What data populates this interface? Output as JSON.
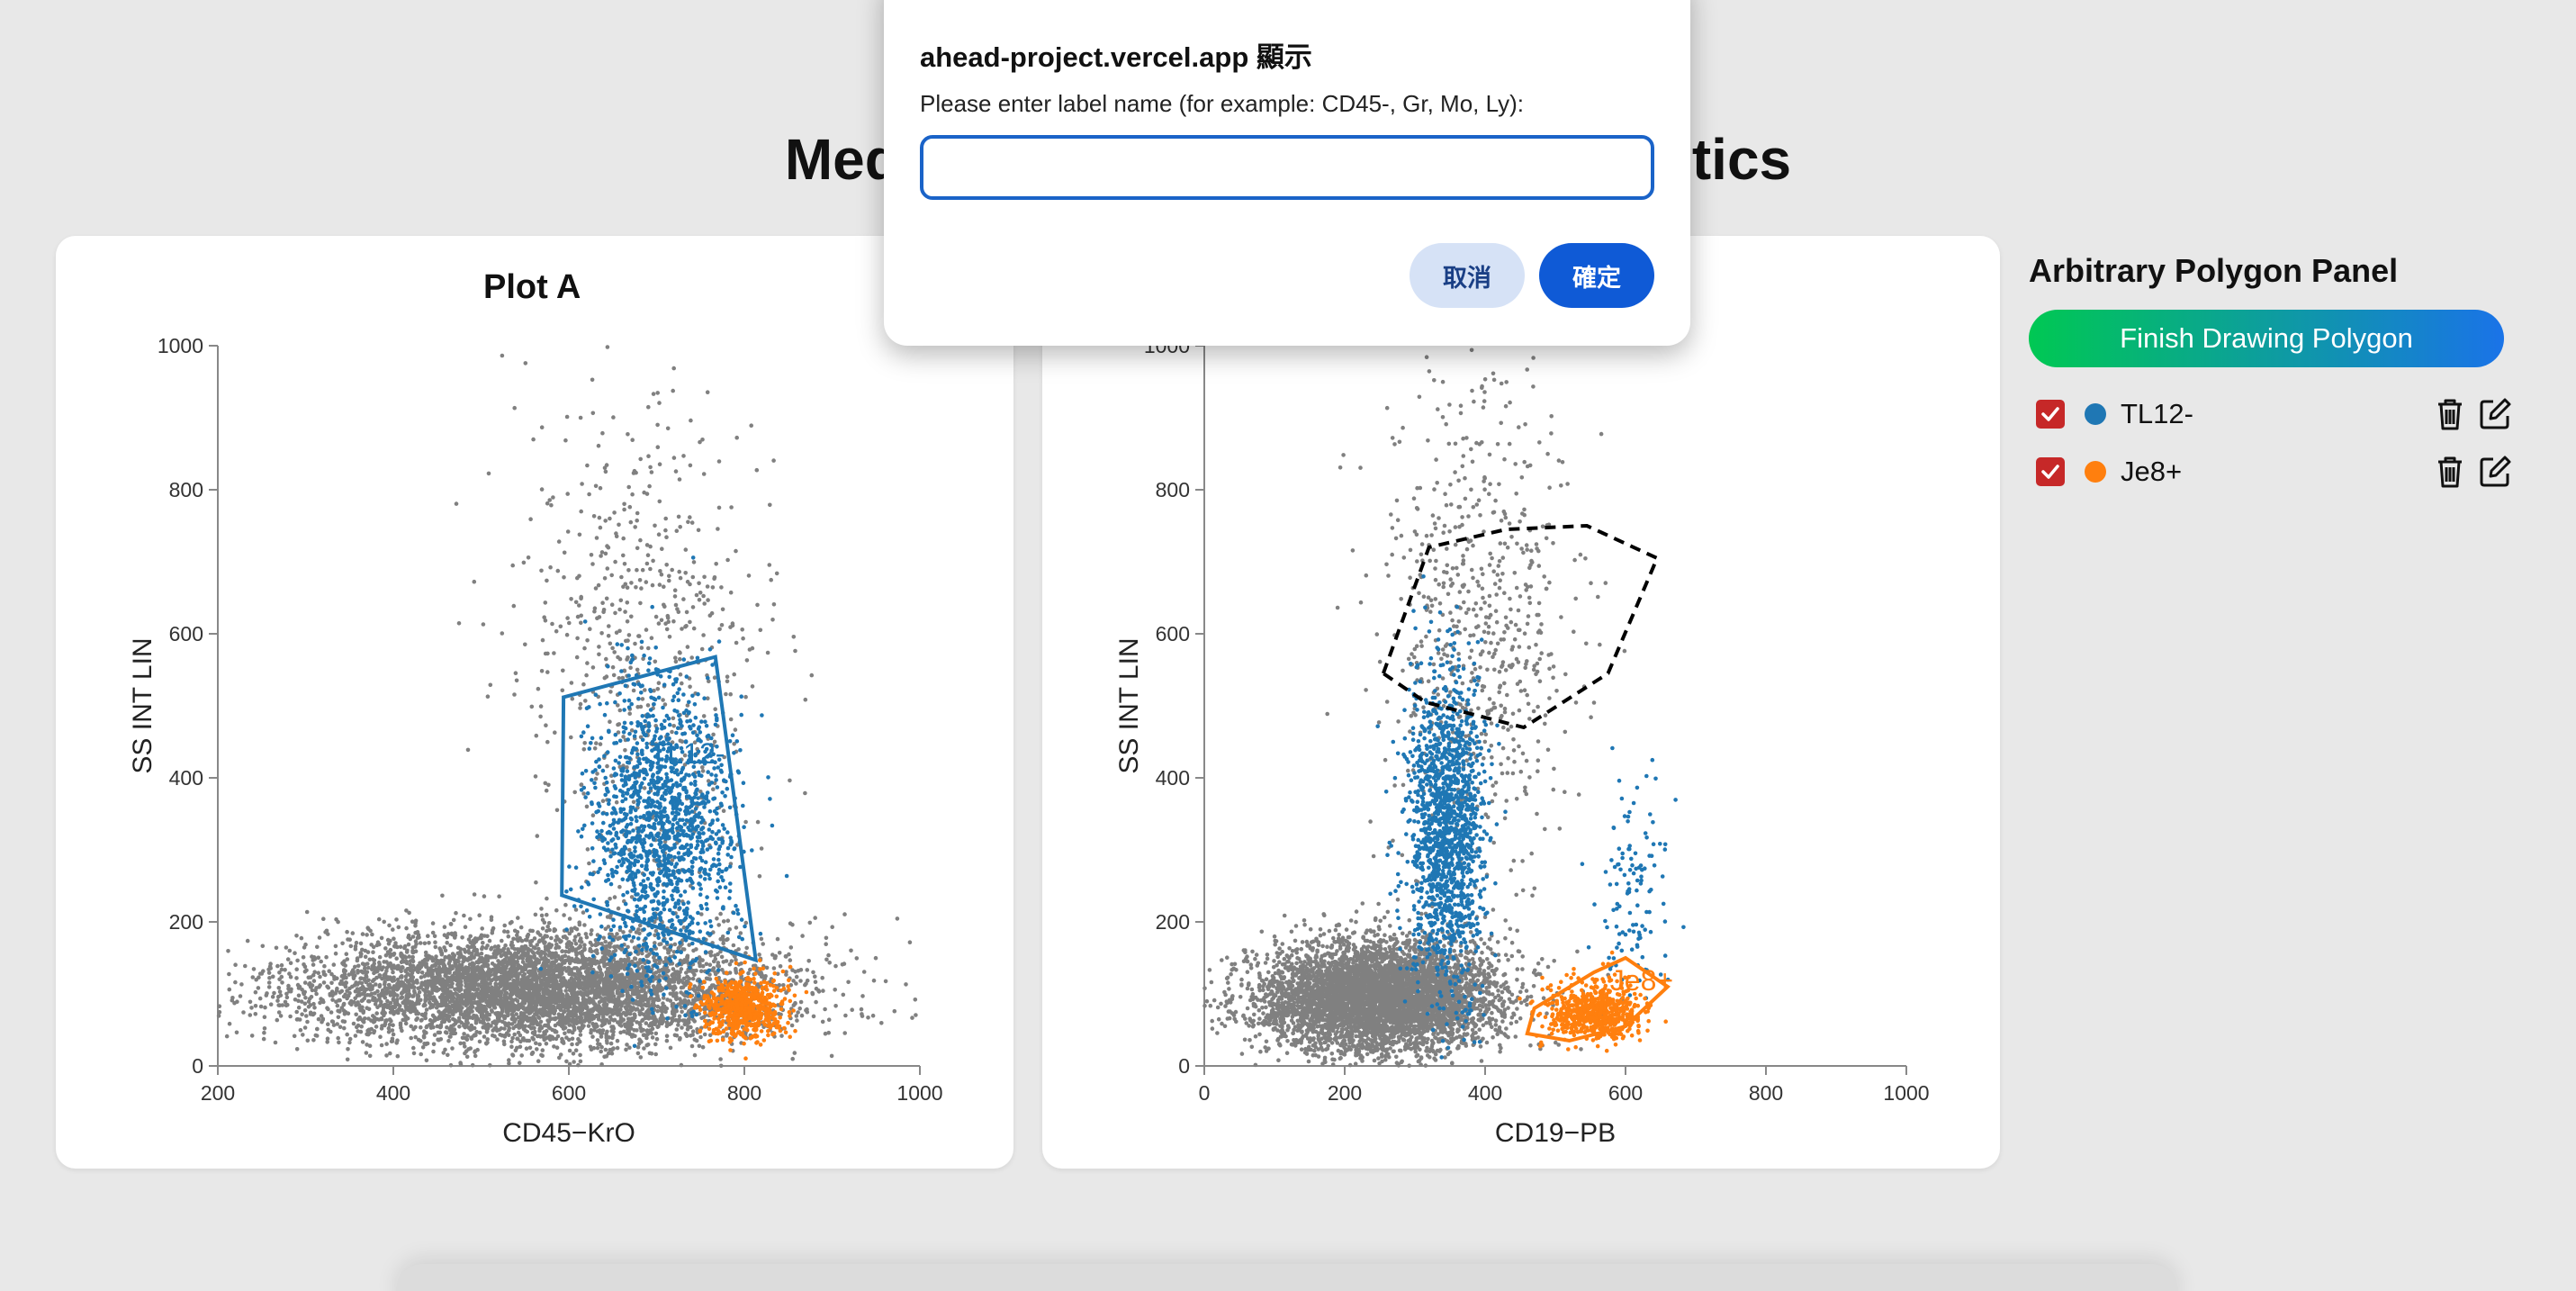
{
  "page": {
    "title_visible_left": "Med",
    "title_visible_right": "tics"
  },
  "plots": [
    {
      "title": "Plot A",
      "xlabel": "CD45−KrO",
      "ylabel": "SS INT LIN",
      "xlim": [
        200,
        1000
      ],
      "ylim": [
        0,
        1000
      ],
      "xticks": [
        "200",
        "400",
        "600",
        "800",
        "1000"
      ],
      "yticks": [
        "0",
        "200",
        "400",
        "600",
        "800",
        "1000"
      ]
    },
    {
      "title": "",
      "xlabel": "CD19−PB",
      "ylabel": "SS INT LIN",
      "xlim": [
        0,
        1000
      ],
      "ylim": [
        0,
        1000
      ],
      "xticks": [
        "0",
        "200",
        "400",
        "600",
        "800",
        "1000"
      ],
      "yticks": [
        "0",
        "200",
        "400",
        "600",
        "800",
        "1000"
      ]
    }
  ],
  "chart_data": [
    {
      "type": "scatter",
      "title": "Plot A",
      "xlabel": "CD45−KrO",
      "ylabel": "SS INT LIN",
      "xlim": [
        200,
        1000
      ],
      "ylim": [
        0,
        1000
      ],
      "series": [
        {
          "name": "TL12-",
          "color": "#1f77b4"
        },
        {
          "name": "Je8+",
          "color": "#ff7f0e"
        }
      ],
      "populations": [
        {
          "color": "#808080",
          "n": 5200,
          "cx": 560,
          "cy": 105,
          "sx": 140,
          "sy": 40
        },
        {
          "color": "#808080",
          "n": 650,
          "cx": 680,
          "cy": 560,
          "sx": 70,
          "sy": 200
        },
        {
          "color": "#1f77b4",
          "n": 1500,
          "cx": 705,
          "cy": 330,
          "sx": 40,
          "sy": 100
        },
        {
          "color": "#ff7f0e",
          "n": 650,
          "cx": 800,
          "cy": 80,
          "sx": 22,
          "sy": 22
        }
      ],
      "gates": [
        {
          "label": "TL12-",
          "color": "#1f77b4",
          "style": "solid",
          "points": [
            [
              594,
              512
            ],
            [
              767,
              568
            ],
            [
              813,
              147
            ],
            [
              592,
              237
            ]
          ],
          "label_at": [
            735,
            420
          ]
        }
      ]
    },
    {
      "type": "scatter",
      "title": "",
      "xlabel": "CD19−PB",
      "ylabel": "SS INT LIN",
      "xlim": [
        0,
        1000
      ],
      "ylim": [
        0,
        1000
      ],
      "series": [
        {
          "name": "TL12-",
          "color": "#1f77b4"
        },
        {
          "name": "Je8+",
          "color": "#ff7f0e"
        }
      ],
      "populations": [
        {
          "color": "#808080",
          "n": 5200,
          "cx": 250,
          "cy": 95,
          "sx": 85,
          "sy": 38
        },
        {
          "color": "#808080",
          "n": 650,
          "cx": 390,
          "cy": 600,
          "sx": 70,
          "sy": 160
        },
        {
          "color": "#1f77b4",
          "n": 1500,
          "cx": 345,
          "cy": 330,
          "sx": 28,
          "sy": 110
        },
        {
          "color": "#1f77b4",
          "n": 120,
          "cx": 610,
          "cy": 250,
          "sx": 25,
          "sy": 70
        },
        {
          "color": "#ff7f0e",
          "n": 650,
          "cx": 555,
          "cy": 75,
          "sx": 35,
          "sy": 20
        }
      ],
      "gates": [
        {
          "label": "Je8+",
          "color": "#ff7f0e",
          "style": "solid",
          "points": [
            [
              460,
              45
            ],
            [
              470,
              80
            ],
            [
              555,
              130
            ],
            [
              600,
              150
            ],
            [
              660,
              110
            ],
            [
              600,
              55
            ],
            [
              520,
              35
            ]
          ],
          "label_at": [
            623,
            105
          ]
        },
        {
          "label": "",
          "color": "#000000",
          "style": "dashed",
          "points": [
            [
              255,
              545
            ],
            [
              320,
              720
            ],
            [
              430,
              745
            ],
            [
              545,
              750
            ],
            [
              645,
              705
            ],
            [
              575,
              545
            ],
            [
              455,
              470
            ],
            [
              315,
              505
            ]
          ],
          "label_at": null
        }
      ]
    }
  ],
  "dialog": {
    "title": "ahead-project.vercel.app 顯示",
    "message": "Please enter label name (for example: CD45-, Gr, Mo, Ly):",
    "input_value": "",
    "cancel_label": "取消",
    "ok_label": "確定"
  },
  "panel": {
    "title": "Arbitrary Polygon Panel",
    "finish_label": "Finish Drawing Polygon",
    "finish_gradient": [
      "#00c853",
      "#1a73e8"
    ],
    "labels": [
      {
        "name": "TL12-",
        "color": "#1f77b4",
        "checked": true
      },
      {
        "name": "Je8+",
        "color": "#ff7f0e",
        "checked": true
      }
    ],
    "checkbox_color": "#c62828"
  }
}
